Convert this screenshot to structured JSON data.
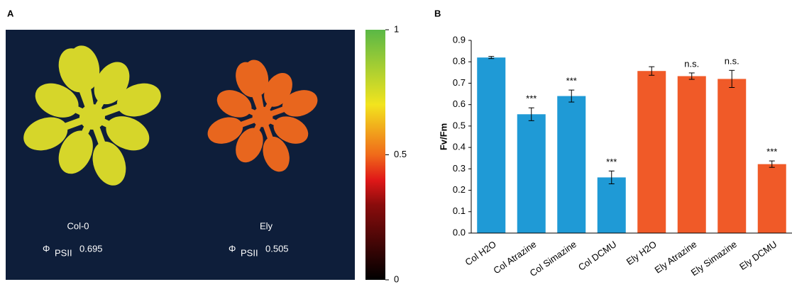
{
  "chart_data": [
    {
      "type": "image",
      "panel_label": "A",
      "plants": [
        {
          "name": "Col-0",
          "symbol": "Φ",
          "subscript": "PSII",
          "value": 0.695,
          "color": "#d6d62a"
        },
        {
          "name": "Ely",
          "symbol": "Φ",
          "subscript": "PSII",
          "value": 0.505,
          "color": "#e8661e"
        }
      ],
      "clim": [
        0,
        1
      ],
      "cticks": [
        0,
        0.5,
        1
      ]
    },
    {
      "type": "bar",
      "panel_label": "B",
      "ylabel": "Fv/Fm",
      "categories": [
        "Col H2O",
        "Col Atrazine",
        "Col Simazine",
        "Col DCMU",
        "Ely H2O",
        "Ely Atrazine",
        "Ely Simazine",
        "Ely DCMU"
      ],
      "values": [
        0.82,
        0.555,
        0.64,
        0.26,
        0.757,
        0.733,
        0.72,
        0.322
      ],
      "errors": [
        0.005,
        0.03,
        0.028,
        0.03,
        0.02,
        0.015,
        0.04,
        0.015
      ],
      "colors": [
        "#1f9ad6",
        "#1f9ad6",
        "#1f9ad6",
        "#1f9ad6",
        "#f05a28",
        "#f05a28",
        "#f05a28",
        "#f05a28"
      ],
      "significance": [
        null,
        "***",
        "***",
        "***",
        null,
        "n.s.",
        "n.s.",
        "***"
      ],
      "ylim": [
        0,
        0.9
      ],
      "yticks": [
        {
          "value": 0,
          "label": "0.0"
        },
        0.1,
        0.2,
        0.3,
        0.4,
        0.5,
        0.6,
        0.7,
        0.8,
        0.9
      ]
    }
  ]
}
